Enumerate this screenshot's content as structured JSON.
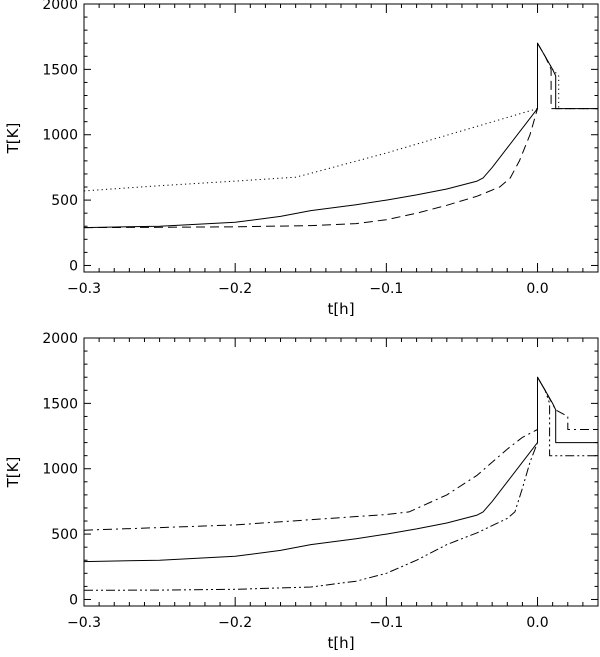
{
  "chart_data": [
    {
      "type": "line",
      "xlabel": "t[h]",
      "ylabel": "T[K]",
      "xlim": [
        -0.3,
        0.04
      ],
      "ylim": [
        -50,
        2000
      ],
      "x_ticks": [
        -0.3,
        -0.2,
        -0.1,
        0.0
      ],
      "x_tick_labels": [
        "−0.3",
        "−0.2",
        "−0.1",
        "0.0"
      ],
      "y_ticks": [
        0,
        500,
        1000,
        1500,
        2000
      ],
      "y_tick_labels": [
        "0",
        "500",
        "1000",
        "1500",
        "2000"
      ],
      "grid": false,
      "series": [
        {
          "style": "solid",
          "points": [
            [
              -0.3,
              290
            ],
            [
              -0.25,
              300
            ],
            [
              -0.2,
              330
            ],
            [
              -0.17,
              375
            ],
            [
              -0.15,
              420
            ],
            [
              -0.12,
              465
            ],
            [
              -0.1,
              500
            ],
            [
              -0.08,
              540
            ],
            [
              -0.06,
              585
            ],
            [
              -0.04,
              645
            ],
            [
              -0.036,
              670
            ],
            [
              -0.03,
              750
            ],
            [
              -0.02,
              900
            ],
            [
              -0.01,
              1050
            ],
            [
              0.0,
              1200
            ],
            [
              0.0,
              1700
            ],
            [
              0.005,
              1600
            ],
            [
              0.01,
              1500
            ],
            [
              0.012,
              1450
            ],
            [
              0.012,
              1200
            ],
            [
              0.04,
              1200
            ]
          ]
        },
        {
          "style": "dashed",
          "points": [
            [
              -0.3,
              290
            ],
            [
              -0.25,
              292
            ],
            [
              -0.2,
              296
            ],
            [
              -0.15,
              305
            ],
            [
              -0.12,
              320
            ],
            [
              -0.1,
              350
            ],
            [
              -0.08,
              400
            ],
            [
              -0.06,
              460
            ],
            [
              -0.04,
              530
            ],
            [
              -0.025,
              600
            ],
            [
              -0.018,
              670
            ],
            [
              -0.012,
              800
            ],
            [
              -0.005,
              1000
            ],
            [
              0.0,
              1200
            ],
            [
              0.0,
              1700
            ],
            [
              0.005,
              1600
            ],
            [
              0.009,
              1500
            ],
            [
              0.009,
              1200
            ],
            [
              0.04,
              1200
            ]
          ]
        },
        {
          "style": "dotted",
          "points": [
            [
              -0.3,
              570
            ],
            [
              -0.25,
              610
            ],
            [
              -0.2,
              645
            ],
            [
              -0.16,
              675
            ],
            [
              -0.15,
              705
            ],
            [
              -0.1,
              860
            ],
            [
              -0.05,
              1030
            ],
            [
              0.0,
              1200
            ],
            [
              0.0,
              1700
            ],
            [
              0.005,
              1600
            ],
            [
              0.01,
              1500
            ],
            [
              0.014,
              1450
            ],
            [
              0.014,
              1200
            ],
            [
              0.04,
              1200
            ]
          ]
        }
      ]
    },
    {
      "type": "line",
      "xlabel": "t[h]",
      "ylabel": "T[K]",
      "xlim": [
        -0.3,
        0.04
      ],
      "ylim": [
        -50,
        2000
      ],
      "x_ticks": [
        -0.3,
        -0.2,
        -0.1,
        0.0
      ],
      "x_tick_labels": [
        "−0.3",
        "−0.2",
        "−0.1",
        "0.0"
      ],
      "y_ticks": [
        0,
        500,
        1000,
        1500,
        2000
      ],
      "y_tick_labels": [
        "0",
        "500",
        "1000",
        "1500",
        "2000"
      ],
      "grid": false,
      "series": [
        {
          "style": "solid",
          "points": [
            [
              -0.3,
              290
            ],
            [
              -0.25,
              300
            ],
            [
              -0.2,
              330
            ],
            [
              -0.17,
              375
            ],
            [
              -0.15,
              420
            ],
            [
              -0.12,
              465
            ],
            [
              -0.1,
              500
            ],
            [
              -0.08,
              540
            ],
            [
              -0.06,
              585
            ],
            [
              -0.04,
              645
            ],
            [
              -0.036,
              670
            ],
            [
              -0.03,
              750
            ],
            [
              -0.02,
              900
            ],
            [
              -0.01,
              1050
            ],
            [
              0.0,
              1200
            ],
            [
              0.0,
              1700
            ],
            [
              0.005,
              1600
            ],
            [
              0.01,
              1500
            ],
            [
              0.012,
              1450
            ],
            [
              0.012,
              1200
            ],
            [
              0.04,
              1200
            ]
          ]
        },
        {
          "style": "dashdot",
          "points": [
            [
              -0.3,
              530
            ],
            [
              -0.25,
              550
            ],
            [
              -0.2,
              570
            ],
            [
              -0.15,
              610
            ],
            [
              -0.1,
              650
            ],
            [
              -0.085,
              670
            ],
            [
              -0.06,
              800
            ],
            [
              -0.04,
              950
            ],
            [
              -0.02,
              1150
            ],
            [
              -0.01,
              1240
            ],
            [
              0.0,
              1300
            ],
            [
              0.0,
              1700
            ],
            [
              0.005,
              1600
            ],
            [
              0.012,
              1450
            ],
            [
              0.02,
              1400
            ],
            [
              0.02,
              1300
            ],
            [
              0.04,
              1300
            ]
          ]
        },
        {
          "style": "dashdotdot",
          "points": [
            [
              -0.3,
              70
            ],
            [
              -0.25,
              72
            ],
            [
              -0.2,
              78
            ],
            [
              -0.15,
              95
            ],
            [
              -0.12,
              140
            ],
            [
              -0.1,
              200
            ],
            [
              -0.08,
              300
            ],
            [
              -0.06,
              420
            ],
            [
              -0.04,
              510
            ],
            [
              -0.02,
              620
            ],
            [
              -0.015,
              670
            ],
            [
              -0.01,
              850
            ],
            [
              -0.005,
              1050
            ],
            [
              0.0,
              1200
            ],
            [
              0.0,
              1700
            ],
            [
              0.005,
              1600
            ],
            [
              0.008,
              1500
            ],
            [
              0.008,
              1100
            ],
            [
              0.04,
              1100
            ]
          ]
        }
      ]
    }
  ]
}
